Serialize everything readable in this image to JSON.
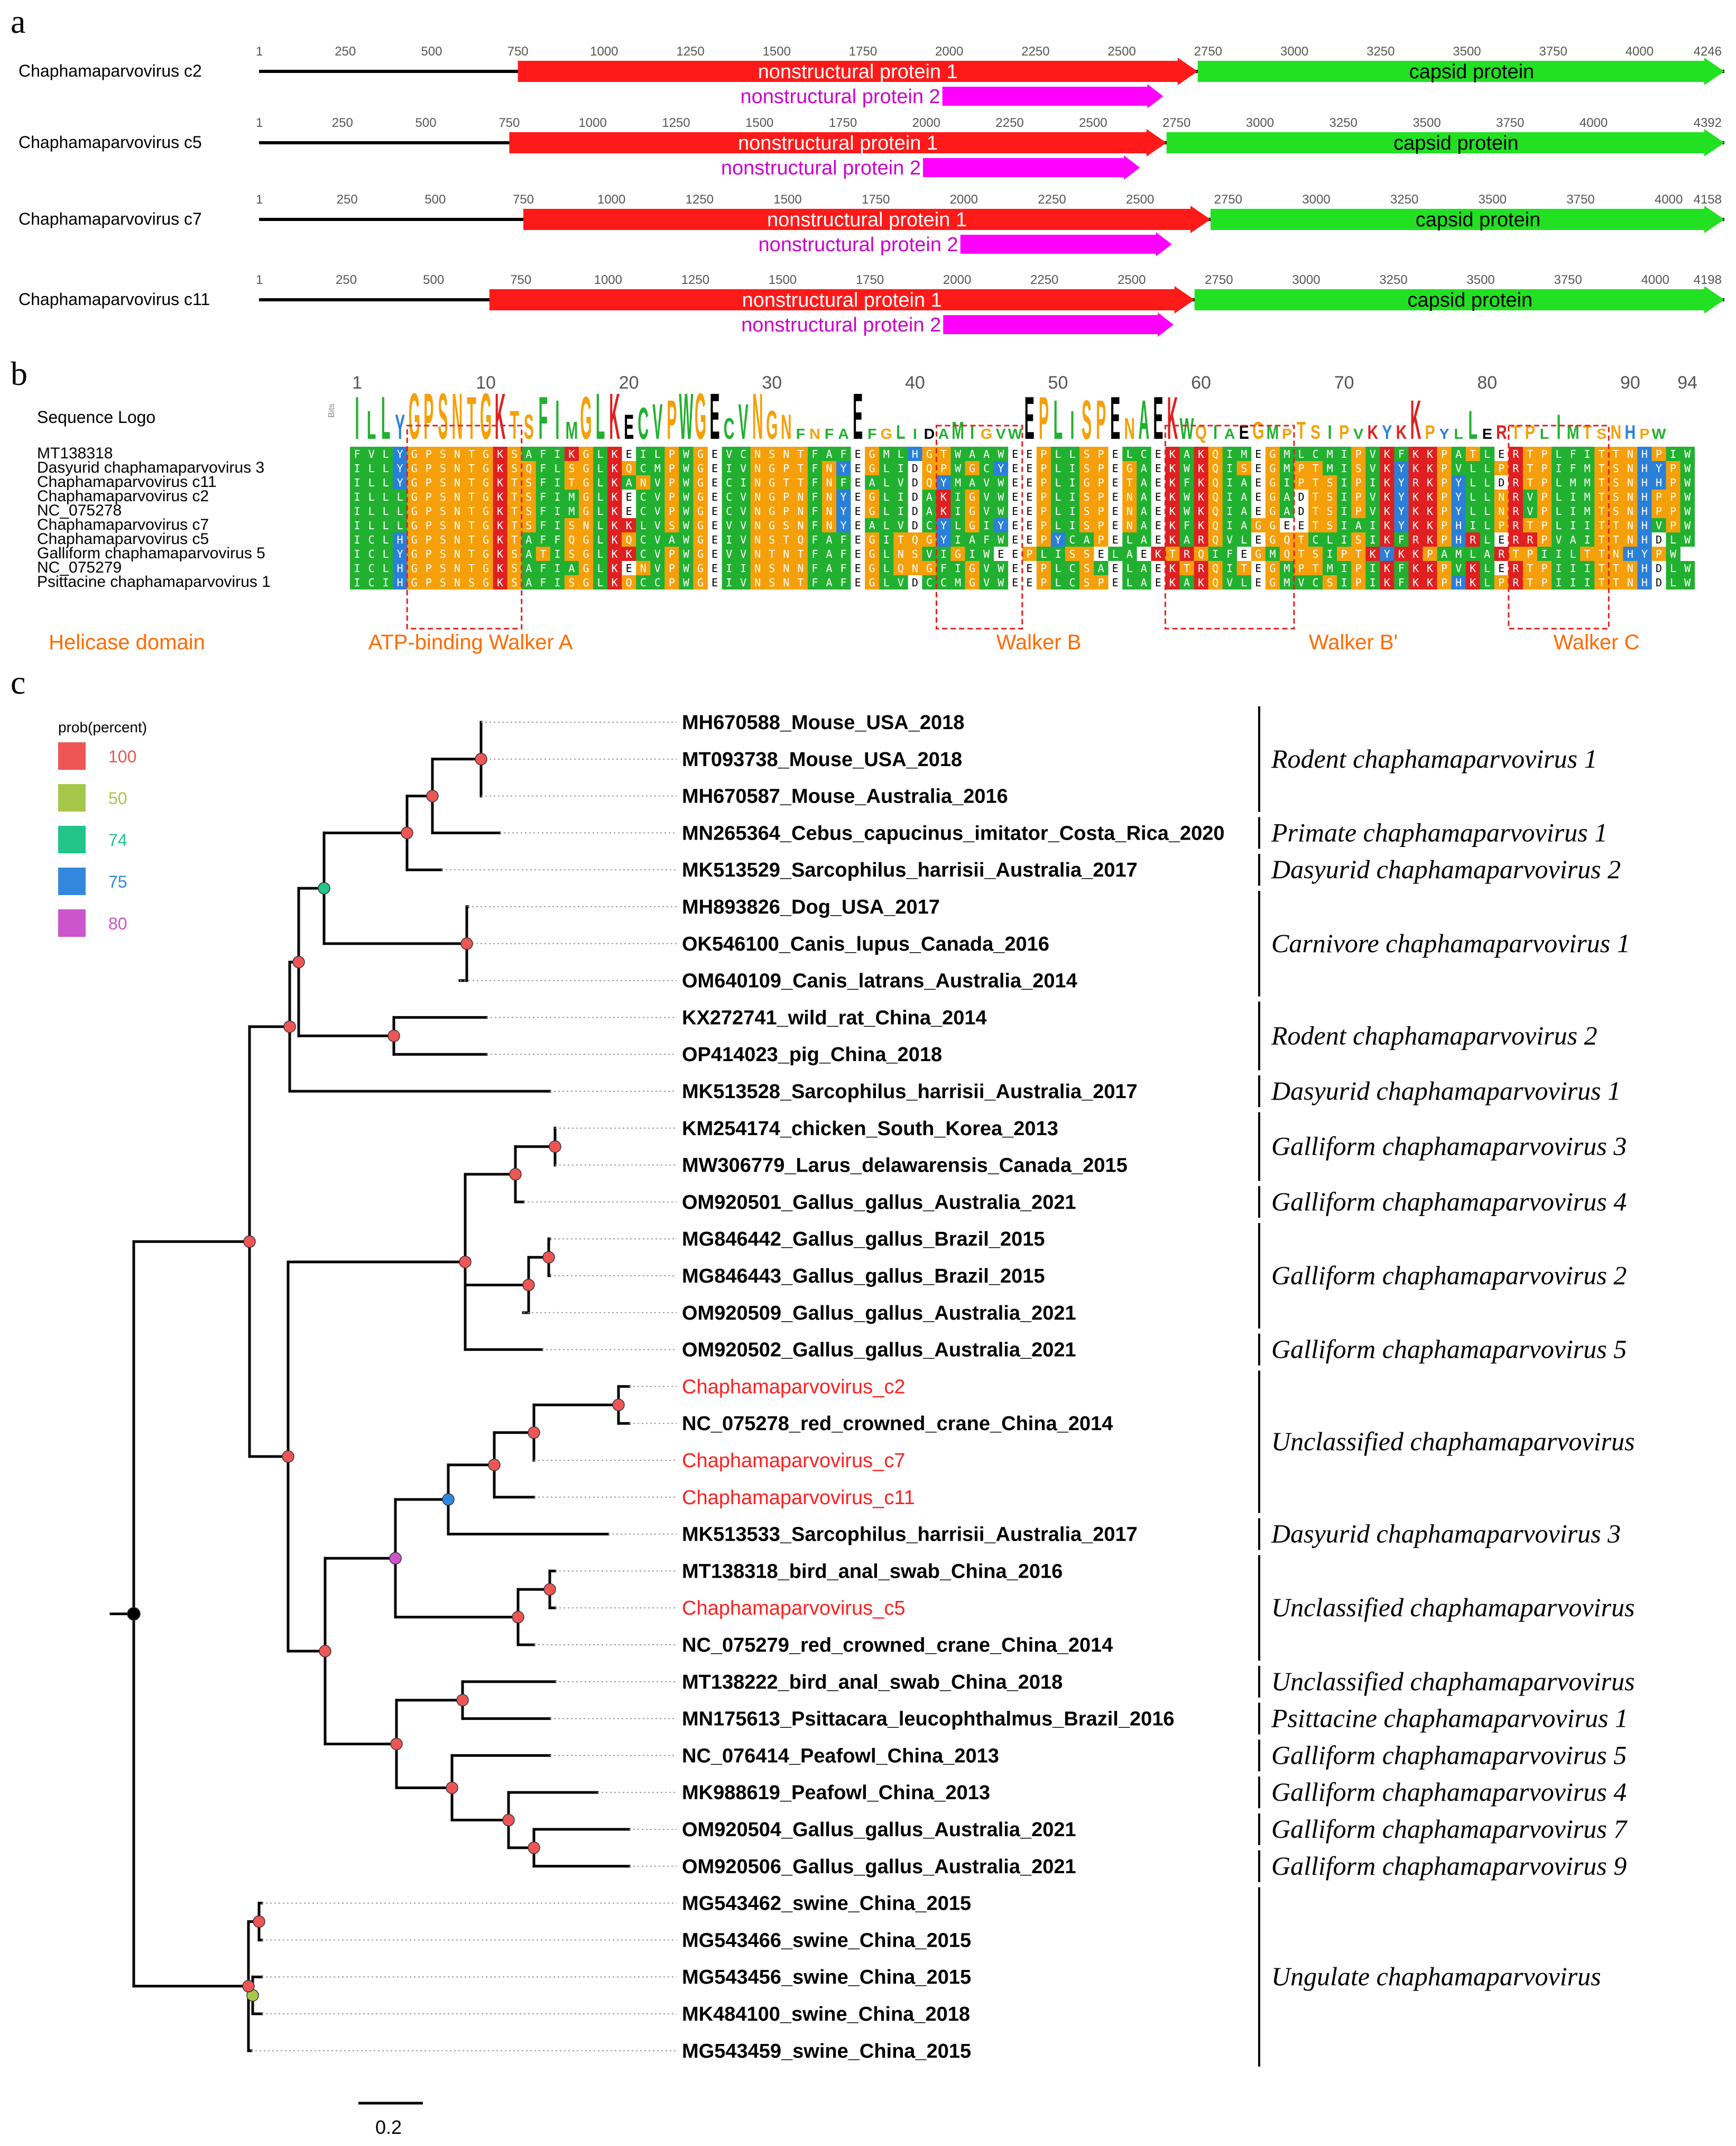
{
  "panels": {
    "a": "a",
    "b": "b",
    "c": "c"
  },
  "genomes": [
    {
      "name": "Chaphamaparvovirus c2",
      "length": 4246,
      "ticks": [
        1,
        250,
        500,
        750,
        1000,
        1250,
        1500,
        1750,
        2000,
        2250,
        2500,
        2750,
        3000,
        3250,
        3500,
        3750,
        4000
      ],
      "ns1": [
        750,
        2720
      ],
      "ns2": [
        1980,
        2620
      ],
      "cap": [
        2720,
        4246
      ]
    },
    {
      "name": "Chaphamaparvovirus c5",
      "length": 4392,
      "ticks": [
        1,
        250,
        500,
        750,
        1000,
        1250,
        1500,
        1750,
        2000,
        2250,
        2500,
        2750,
        3000,
        3250,
        3500,
        3750,
        4000
      ],
      "ns1": [
        750,
        2720
      ],
      "ns2": [
        1990,
        2640
      ],
      "cap": [
        2720,
        4392
      ]
    },
    {
      "name": "Chaphamaparvovirus c7",
      "length": 4158,
      "ticks": [
        1,
        250,
        500,
        750,
        1000,
        1250,
        1500,
        1750,
        2000,
        2250,
        2500,
        2750,
        3000,
        3250,
        3500,
        3750,
        4000
      ],
      "ns1": [
        750,
        2700
      ],
      "ns2": [
        1990,
        2590
      ],
      "cap": [
        2700,
        4158
      ]
    },
    {
      "name": "Chaphamaparvovirus c11",
      "length": 4198,
      "ticks": [
        1,
        250,
        500,
        750,
        1000,
        1250,
        1500,
        1750,
        2000,
        2250,
        2500,
        2750,
        3000,
        3250,
        3500,
        3750,
        4000
      ],
      "ns1": [
        660,
        2680
      ],
      "ns2": [
        1960,
        2620
      ],
      "cap": [
        2680,
        4198
      ]
    }
  ],
  "genome_features": {
    "ns1": "nonstructural protein 1",
    "ns2": "nonstructural protein 2",
    "cap": "capsid protein"
  },
  "colors": {
    "ns1": "#ff1a1a",
    "ns2": "#ff00ff",
    "cap": "#22e022",
    "ns2_text": "#cc00cc",
    "highlight": "#ff2020",
    "box": "#e02020",
    "annot": "#ff6a00",
    "A": "#f5a00a",
    "B": "#22b030",
    "C": "#2a80d8",
    "D": "#e02020",
    "E": "#ffffff"
  },
  "alignment": {
    "logo_label": "Sequence Logo",
    "bits_label": "Bits",
    "positions": [
      "1",
      "10",
      "20",
      "30",
      "40",
      "50",
      "60",
      "70",
      "80",
      "90",
      "94"
    ],
    "logo": "ILLYGPSNTGKTSFIMGLKECVPWGECVNGNFNFAEFGLIDAMIGVWEPLISPENAEKWQIAEGMPTSIPVKYKKPYLLERTPLIMTSNHPW",
    "rows": [
      {
        "name": "MT138318",
        "seq": "FVLYGPSNTGKSAFIKGLKEILPWGEVCNSNTFAFEGMLHGTWAAWEEPLLSPELCEKAKQIMEGMLCMIPVKFKKPATLERTPLFITTNHPIW"
      },
      {
        "name": "Dasyurid chaphamaparvovirus 3",
        "seq": "ILLYGPSNTGKSQFLSGLKQCMPWGEIVNGPTFNYEGLIDQPWGCYEEPLISPEGAEKWKQISEGMPTMISVKYKKPVLLPRTPIFMTSNHYPW"
      },
      {
        "name": "Chaphamaparvovirus c11",
        "seq": "ILLYGPSNTGKTSFITGLKANVPWGECINGTTFNFEALVDQYMAVWEEPLIGPETAEKFKQIAEGIPTSIPIKYRKPYLLDRTPLMMTSNHHPW"
      },
      {
        "name": "Chaphamaparvovirus c2",
        "seq": "ILLLGPSNTGKTSFIMGLKECVPWGECVNGPNFNYEGLIDAKIGVWEEPLISPENAEKWKQIAEGADTSIPVKYKKPYLLNRVPLIMTSNHPPW"
      },
      {
        "name": "NC_075278",
        "seq": "ILLLGPSNTGKTSFIMGLKECVPWGECVNGPNFNYEGLIDAKIGVWEEPLISPENAEKWKQIAEGADTSIPVKYKKPYLLNRVPLIMTSNHPPW"
      },
      {
        "name": "Chaphamaparvovirus c7",
        "seq": "ILLLGPSNTGKTSFISNLKKLVSWGEVVNGSNFNYEALVDCYLGIYEEPLISPENAEKFKQIAGGEETSIAIKYKKPHILPRTPLIITTNHVPW"
      },
      {
        "name": "Chaphamaparvovirus c5",
        "seq": "ICLHGPSNTGKTAFFQGLKQCVAWGEIVNSTQFAFEGITQGYIAFWEEPYCAPELAEKARQVLEGQTCLISIKFRKPHRLERRPVAITTNHDLW"
      },
      {
        "name": "Galliform chaphamaparvovirus 5",
        "seq": "ICLYGPSNTGKSATISGLKKCVPWGEVVNTNTFAFEGLNSVIGIWEEPLISSELAEKTRQIFEGMQTSIPTKYKKPAMLARTPIILTTNHYPW"
      },
      {
        "name": "NC_075279",
        "seq": "ICLHGPSNTGKSAFIAGLKENVPWGEIINSNNFAFEGLQNGFIGVWEEPLCSAELAEKTRQITEGMPTMIPIKFKKPVKLERTPIIITTNHDLW"
      },
      {
        "name": "Psittacine chaphamaparvovirus 1",
        "seq": "ICIHGPSNSGKSAFISGLKQCCPWGEIVNSNTFAFEGLVDCCMGVWEEPLCSPELAEKAKQVLEGMVCSIPIKFKKPHKLPRTPIIITTNHDLW"
      }
    ],
    "annotations": [
      "Helicase domain",
      "ATP-binding Walker A",
      "Walker B",
      "Walker B'",
      "Walker C"
    ]
  },
  "legend": {
    "title": "prob(percent)",
    "items": [
      {
        "label": "100",
        "color": "#ee5555"
      },
      {
        "label": "50",
        "color": "#a6c84a"
      },
      {
        "label": "74",
        "color": "#22c488"
      },
      {
        "label": "75",
        "color": "#3388dd"
      },
      {
        "label": "80",
        "color": "#cc55cc"
      }
    ]
  },
  "tree": {
    "tips": [
      {
        "id": "MH670588",
        "name": "MH670588_Mouse_USA_2018"
      },
      {
        "id": "MT093738",
        "name": "MT093738_Mouse_USA_2018"
      },
      {
        "id": "MH670587",
        "name": "MH670587_Mouse_Australia_2016"
      },
      {
        "id": "MN265364",
        "name": "MN265364_Cebus_capucinus_imitator_Costa_Rica_2020"
      },
      {
        "id": "MK513529",
        "name": "MK513529_Sarcophilus_harrisii_Australia_2017"
      },
      {
        "id": "MH893826",
        "name": "MH893826_Dog_USA_2017"
      },
      {
        "id": "OK546100",
        "name": "OK546100_Canis_lupus_Canada_2016"
      },
      {
        "id": "OM640109",
        "name": "OM640109_Canis_latrans_Australia_2014"
      },
      {
        "id": "KX272741",
        "name": "KX272741_wild_rat_China_2014"
      },
      {
        "id": "OP414023",
        "name": "OP414023_pig_China_2018"
      },
      {
        "id": "MK513528",
        "name": "MK513528_Sarcophilus_harrisii_Australia_2017"
      },
      {
        "id": "KM254174",
        "name": "KM254174_chicken_South_Korea_2013"
      },
      {
        "id": "MW306779",
        "name": "MW306779_Larus_delawarensis_Canada_2015"
      },
      {
        "id": "OM920501",
        "name": "OM920501_Gallus_gallus_Australia_2021"
      },
      {
        "id": "MG846442",
        "name": "MG846442_Gallus_gallus_Brazil_2015"
      },
      {
        "id": "MG846443",
        "name": "MG846443_Gallus_gallus_Brazil_2015"
      },
      {
        "id": "OM920509",
        "name": "OM920509_Gallus_gallus_Australia_2021"
      },
      {
        "id": "OM920502",
        "name": "OM920502_Gallus_gallus_Australia_2021"
      },
      {
        "id": "c2",
        "name": "Chaphamaparvovirus_c2",
        "highlight": true
      },
      {
        "id": "NC_075278",
        "name": "NC_075278_red_crowned_crane_China_2014"
      },
      {
        "id": "c7",
        "name": "Chaphamaparvovirus_c7",
        "highlight": true
      },
      {
        "id": "c11",
        "name": "Chaphamaparvovirus_c11",
        "highlight": true
      },
      {
        "id": "MK513533",
        "name": "MK513533_Sarcophilus_harrisii_Australia_2017"
      },
      {
        "id": "MT138318",
        "name": "MT138318_bird_anal_swab_China_2016"
      },
      {
        "id": "c5",
        "name": "Chaphamaparvovirus_c5",
        "highlight": true
      },
      {
        "id": "NC_075279",
        "name": "NC_075279_red_crowned_crane_China_2014"
      },
      {
        "id": "MT138222",
        "name": "MT138222_bird_anal_swab_China_2018"
      },
      {
        "id": "MN175613",
        "name": "MN175613_Psittacara_leucophthalmus_Brazil_2016"
      },
      {
        "id": "NC_076414",
        "name": "NC_076414_Peafowl_China_2013"
      },
      {
        "id": "MK988619",
        "name": "MK988619_Peafowl_China_2013"
      },
      {
        "id": "OM920504",
        "name": "OM920504_Gallus_gallus_Australia_2021"
      },
      {
        "id": "OM920506",
        "name": "OM920506_Gallus_gallus_Australia_2021"
      },
      {
        "id": "MG543462",
        "name": "MG543462_swine_China_2015"
      },
      {
        "id": "MG543466",
        "name": "MG543466_swine_China_2015"
      },
      {
        "id": "MG543456",
        "name": "MG543456_swine_China_2015"
      },
      {
        "id": "MK484100",
        "name": "MK484100_swine_China_2018"
      },
      {
        "id": "MG543459",
        "name": "MG543459_swine_China_2015"
      }
    ],
    "clades": [
      {
        "label": "Rodent chaphamaparvovirus 1",
        "from": 0,
        "to": 2
      },
      {
        "label": "Primate chaphamaparvovirus 1",
        "from": 3,
        "to": 3
      },
      {
        "label": "Dasyurid chaphamaparvovirus 2",
        "from": 4,
        "to": 4
      },
      {
        "label": "Carnivore chaphamaparvovirus 1",
        "from": 5,
        "to": 7
      },
      {
        "label": "Rodent chaphamaparvovirus 2",
        "from": 8,
        "to": 9
      },
      {
        "label": "Dasyurid chaphamaparvovirus 1",
        "from": 10,
        "to": 10
      },
      {
        "label": "Galliform chaphamaparvovirus 3",
        "from": 11,
        "to": 12
      },
      {
        "label": "Galliform chaphamaparvovirus 4",
        "from": 13,
        "to": 13
      },
      {
        "label": "Galliform chaphamaparvovirus 2",
        "from": 14,
        "to": 16
      },
      {
        "label": "Galliform chaphamaparvovirus 5",
        "from": 17,
        "to": 17
      },
      {
        "label": "Unclassified chaphamaparvovirus",
        "from": 18,
        "to": 21
      },
      {
        "label": "Dasyurid chaphamaparvovirus 3",
        "from": 22,
        "to": 22
      },
      {
        "label": "Unclassified chaphamaparvovirus",
        "from": 23,
        "to": 25
      },
      {
        "label": "Unclassified chaphamaparvovirus",
        "from": 26,
        "to": 26
      },
      {
        "label": "Psittacine chaphamaparvovirus 1",
        "from": 27,
        "to": 27
      },
      {
        "label": "Galliform chaphamaparvovirus 5",
        "from": 28,
        "to": 28
      },
      {
        "label": "Galliform chaphamaparvovirus 4",
        "from": 29,
        "to": 29
      },
      {
        "label": "Galliform chaphamaparvovirus 7",
        "from": 30,
        "to": 30
      },
      {
        "label": "Galliform chaphamaparvovirus 9",
        "from": 31,
        "to": 31
      },
      {
        "label": "Ungulate chaphamaparvovirus",
        "from": 32,
        "to": 36
      }
    ],
    "scale_label": "0.2"
  }
}
